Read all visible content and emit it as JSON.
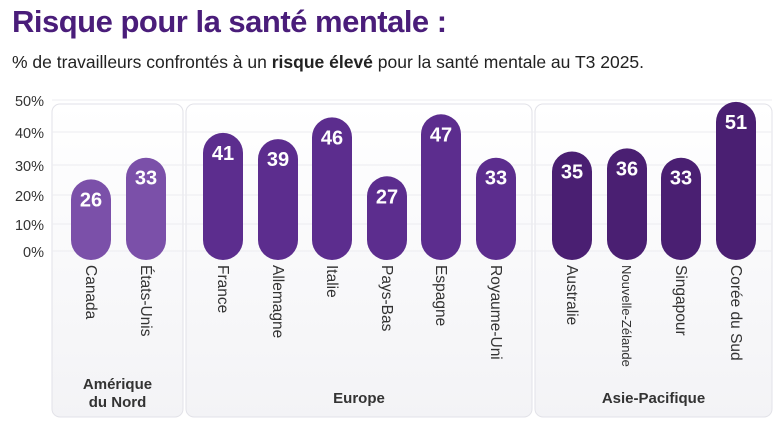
{
  "chart_data": {
    "type": "bar",
    "title": "Risque pour la santé mentale :",
    "subtitle": {
      "pre": "% de travailleurs confrontés à un ",
      "bold": "risque élevé",
      "post": " pour la santé mentale au T3 2025."
    },
    "ylim": [
      0,
      50
    ],
    "yticks": [
      "0%",
      "10%",
      "20%",
      "30%",
      "40%",
      "50%"
    ],
    "grid": true,
    "groups": [
      {
        "name": "Amérique du Nord",
        "lines": [
          "Amérique",
          "du Nord"
        ],
        "color": "#7b50a9",
        "categories": [
          "Canada",
          "États-Unis"
        ],
        "values": [
          26,
          33
        ]
      },
      {
        "name": "Europe",
        "lines": [
          "Europe"
        ],
        "color": "#5c2d8e",
        "categories": [
          "France",
          "Allemagne",
          "Italie",
          "Pays-Bas",
          "Espagne",
          "Royaume-Uni"
        ],
        "values": [
          41,
          39,
          46,
          27,
          47,
          33
        ]
      },
      {
        "name": "Asie-Pacifique",
        "lines": [
          "Asie-Pacifique"
        ],
        "color": "#4a1f72",
        "categories": [
          "Australie",
          "Nouvelle-Zélande",
          "Singapour",
          "Corée du Sud"
        ],
        "values": [
          35,
          36,
          33,
          51
        ]
      }
    ]
  }
}
